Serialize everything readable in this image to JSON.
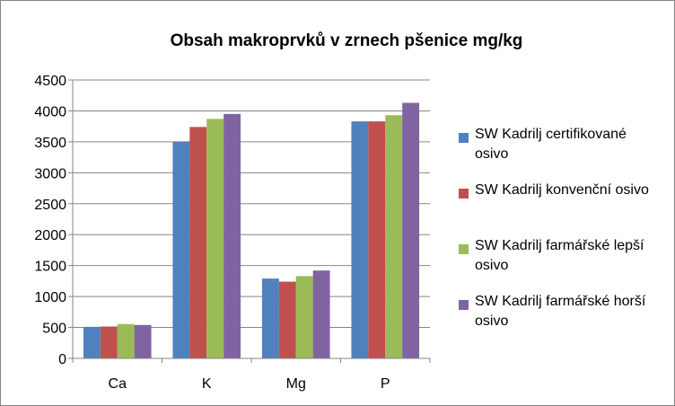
{
  "chart_data": {
    "type": "bar",
    "title": "Obsah makroprvků v zrnech  pšenice mg/kg",
    "xlabel": "",
    "ylabel": "",
    "categories": [
      "Ca",
      "K",
      "Mg",
      "P"
    ],
    "ylim": [
      0,
      4500
    ],
    "yticks": [
      "0",
      "500",
      "1000",
      "1500",
      "2000",
      "2500",
      "3000",
      "3500",
      "4000",
      "4500"
    ],
    "grid": true,
    "legend_position": "right",
    "series": [
      {
        "name": "SW Kadrilj certifikované osivo",
        "color": "#4F81BD",
        "values": [
          510,
          3500,
          1290,
          3830
        ]
      },
      {
        "name": "SW Kadrilj  konvenční osivo",
        "color": "#C0504D",
        "values": [
          515,
          3740,
          1240,
          3830
        ]
      },
      {
        "name": "SW Kadrilj  farmářské lepší osivo",
        "color": "#9BBB59",
        "values": [
          555,
          3870,
          1330,
          3930
        ]
      },
      {
        "name": "SW Kadrilj  farmářské horší  osivo",
        "color": "#8064A2",
        "values": [
          540,
          3950,
          1420,
          4130
        ]
      }
    ]
  }
}
